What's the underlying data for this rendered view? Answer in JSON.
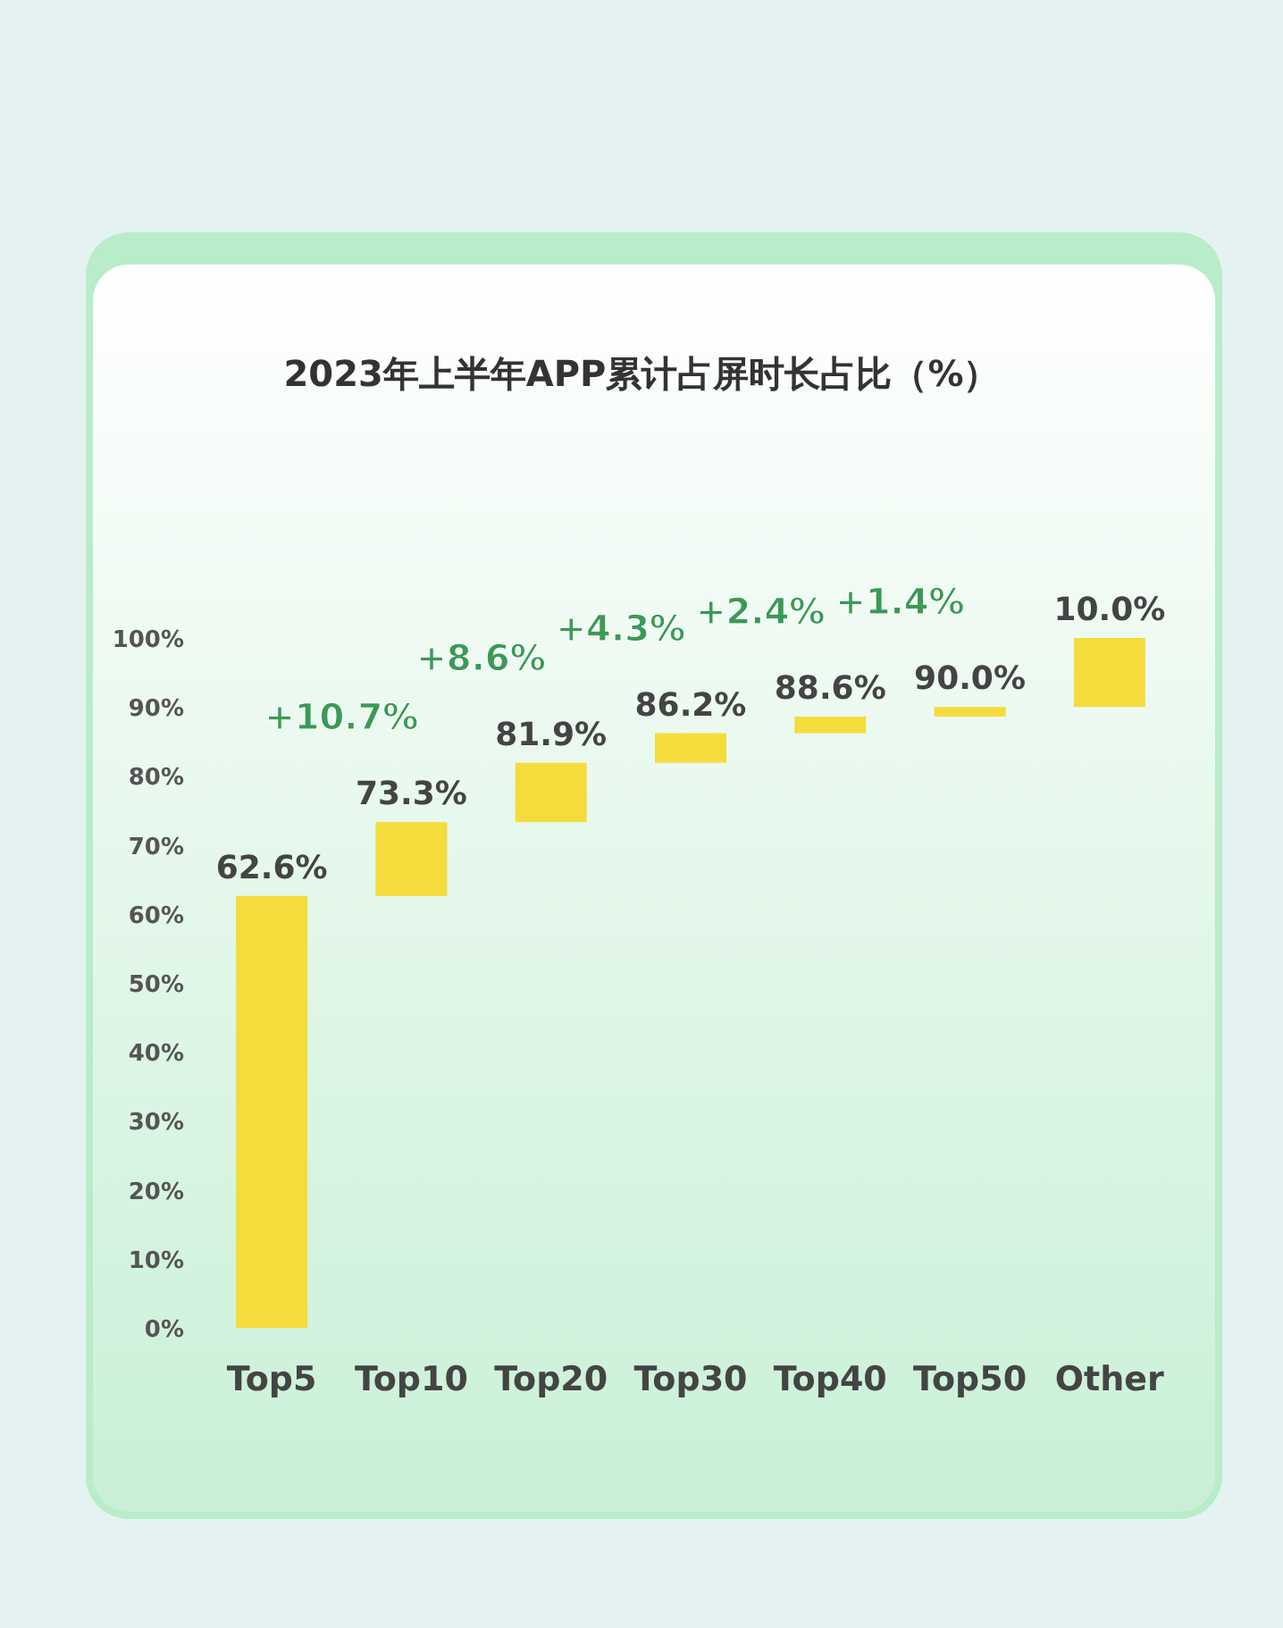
{
  "chart_data": {
    "type": "bar",
    "title": "2023年上半年APP累计占屏时长占比（%）",
    "categories": [
      "Top5",
      "Top10",
      "Top20",
      "Top30",
      "Top40",
      "Top50",
      "Other"
    ],
    "values": [
      62.6,
      10.7,
      8.6,
      4.3,
      2.4,
      1.4,
      10.0
    ],
    "base": [
      0,
      62.6,
      73.3,
      81.9,
      86.2,
      88.6,
      90.0
    ],
    "color": "#f4dc3c",
    "value_labels": [
      "62.6%",
      "73.3%",
      "81.9%",
      "86.2%",
      "88.6%",
      "90.0%",
      "10.0%"
    ],
    "annotations": [
      "+10.7%",
      "+8.6%",
      "+4.3%",
      "+2.4%",
      "+1.4%"
    ],
    "ylim": [
      0,
      100
    ],
    "yticks": [
      {
        "value": 0,
        "label": "0%"
      },
      {
        "value": 10,
        "label": "10%"
      },
      {
        "value": 20,
        "label": "20%"
      },
      {
        "value": 30,
        "label": "30%"
      },
      {
        "value": 40,
        "label": "40%"
      },
      {
        "value": 50,
        "label": "50%"
      },
      {
        "value": 60,
        "label": "60%"
      },
      {
        "value": 70,
        "label": "70%"
      },
      {
        "value": 80,
        "label": "80%"
      },
      {
        "value": 90,
        "label": "90%"
      },
      {
        "value": 100,
        "label": "100%"
      }
    ],
    "grid": false
  }
}
